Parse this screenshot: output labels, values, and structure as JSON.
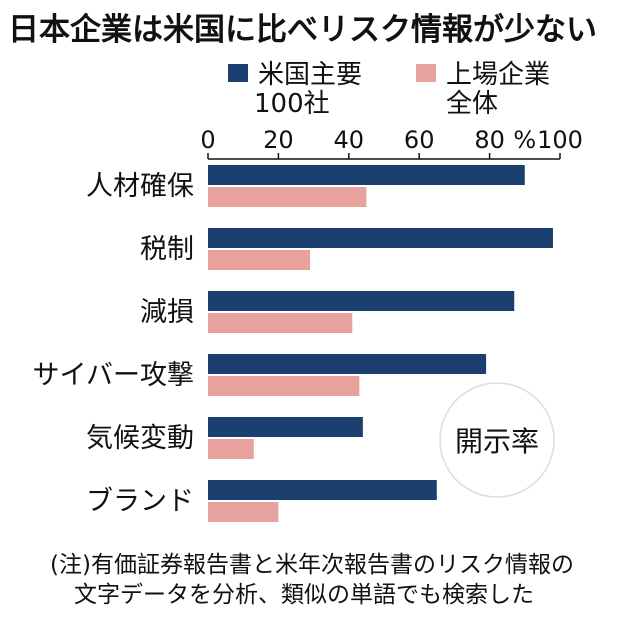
{
  "chart_data": {
    "type": "bar",
    "orientation": "horizontal",
    "title": "日本企業は米国に比べリスク情報が少ない",
    "categories": [
      "人材確保",
      "税制",
      "減損",
      "サイバー攻撃",
      "気候変動",
      "ブランド"
    ],
    "series": [
      {
        "name": "米国主要\n100社",
        "color": "#1b3f6e",
        "values": [
          90,
          98,
          87,
          79,
          44,
          65
        ]
      },
      {
        "name": "上場企業\n全体",
        "color": "#e8a29d",
        "values": [
          45,
          29,
          41,
          43,
          13,
          20
        ]
      }
    ],
    "xlim": [
      0,
      100
    ],
    "x_ticks": [
      0,
      20,
      40,
      60,
      80,
      100
    ],
    "x_unit": "%",
    "axis_position": "top",
    "legend_position": "top",
    "badge": "開示率",
    "note": "(注)有価証券報告書と米年次報告書のリスク情報の\n文字データを分析、類似の単語でも検索した"
  }
}
